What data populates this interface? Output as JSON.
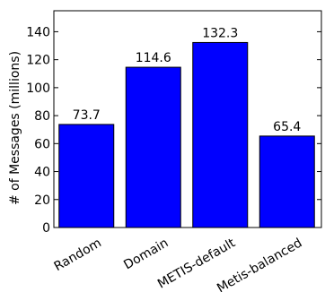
{
  "chart_data": {
    "type": "bar",
    "categories": [
      "Random",
      "Domain",
      "METIS-default",
      "Metis-balanced"
    ],
    "values": [
      73.7,
      114.6,
      132.3,
      65.4
    ],
    "value_labels": [
      "73.7",
      "114.6",
      "132.3",
      "65.4"
    ],
    "title": "",
    "xlabel": "",
    "ylabel": "# of Messages (millions)",
    "ylim": [
      0,
      155
    ],
    "yticks": [
      0,
      20,
      40,
      60,
      80,
      100,
      120,
      140
    ],
    "grid": false,
    "bar_color": "#0000ff",
    "edge_color": "#000000"
  }
}
